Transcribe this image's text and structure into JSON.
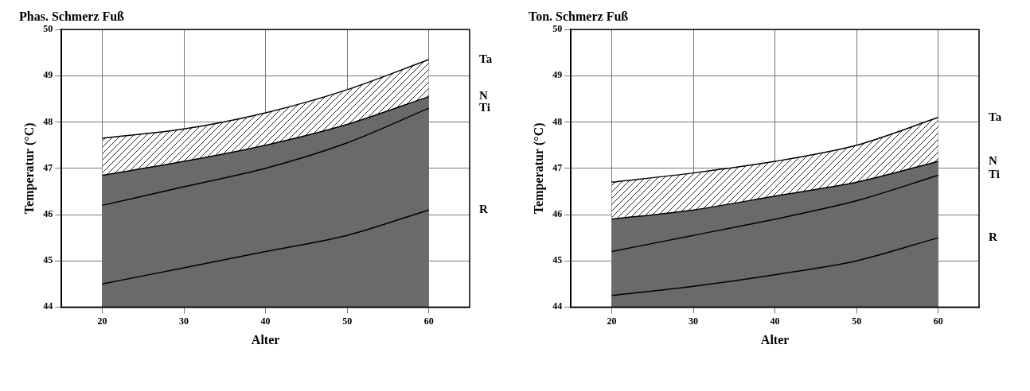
{
  "chart_data": [
    {
      "type": "line",
      "title": "Phas. Schmerz Fuß",
      "x_label": "Alter",
      "y_label": "Temperatur (°C)",
      "x": [
        20,
        30,
        40,
        50,
        60
      ],
      "series": [
        {
          "name": "Ta",
          "color": "#000000",
          "values": [
            47.65,
            47.85,
            48.2,
            48.7,
            49.35
          ]
        },
        {
          "name": "N",
          "color": "#000000",
          "values": [
            46.85,
            47.15,
            47.5,
            47.95,
            48.55
          ]
        },
        {
          "name": "Ti",
          "color": "#000000",
          "values": [
            46.2,
            46.6,
            47.0,
            47.55,
            48.3
          ]
        },
        {
          "name": "R",
          "color": "#000000",
          "values": [
            44.5,
            44.85,
            45.2,
            45.55,
            46.1
          ]
        }
      ],
      "xlim": [
        15,
        65
      ],
      "xticks": [
        20,
        30,
        40,
        50,
        60
      ],
      "ylim": [
        44,
        50
      ],
      "yticks": [
        44,
        45,
        46,
        47,
        48,
        49,
        50
      ],
      "grid": true
    },
    {
      "type": "line",
      "title": "Ton. Schmerz Fuß",
      "x_label": "Alter",
      "y_label": "Temperatur (°C)",
      "x": [
        20,
        30,
        40,
        50,
        60
      ],
      "series": [
        {
          "name": "Ta",
          "color": "#000000",
          "values": [
            46.7,
            46.9,
            47.15,
            47.5,
            48.1
          ]
        },
        {
          "name": "N",
          "color": "#000000",
          "values": [
            45.9,
            46.1,
            46.4,
            46.7,
            47.15
          ]
        },
        {
          "name": "Ti",
          "color": "#000000",
          "values": [
            45.2,
            45.55,
            45.9,
            46.3,
            46.85
          ]
        },
        {
          "name": "R",
          "color": "#000000",
          "values": [
            44.25,
            44.45,
            44.7,
            45.0,
            45.5
          ]
        }
      ],
      "xlim": [
        15,
        65
      ],
      "xticks": [
        20,
        30,
        40,
        50,
        60
      ],
      "ylim": [
        44,
        50
      ],
      "yticks": [
        44,
        45,
        46,
        47,
        48,
        49,
        50
      ],
      "grid": true
    }
  ]
}
